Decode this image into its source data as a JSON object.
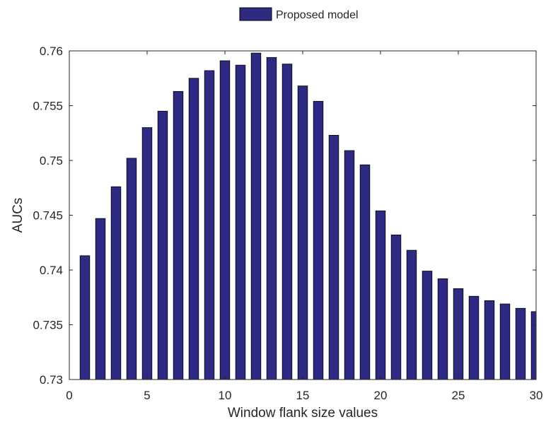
{
  "chart_data": {
    "type": "bar",
    "title": "",
    "xlabel": "Window flank size values",
    "ylabel": "AUCs",
    "xlim": [
      0,
      30
    ],
    "ylim": [
      0.73,
      0.76
    ],
    "xticks": [
      0,
      5,
      10,
      15,
      20,
      25,
      30
    ],
    "xtick_labels": [
      "0",
      "5",
      "10",
      "15",
      "20",
      "25",
      "30"
    ],
    "yticks": [
      0.73,
      0.735,
      0.74,
      0.745,
      0.75,
      0.755,
      0.76
    ],
    "ytick_labels": [
      "0.73",
      "0.735",
      "0.74",
      "0.745",
      "0.75",
      "0.755",
      "0.76"
    ],
    "grid": false,
    "legend_position": "top-center",
    "x": [
      1,
      2,
      3,
      4,
      5,
      6,
      7,
      8,
      9,
      10,
      11,
      12,
      13,
      14,
      15,
      16,
      17,
      18,
      19,
      20,
      21,
      22,
      23,
      24,
      25,
      26,
      27,
      28,
      29,
      30
    ],
    "series": [
      {
        "name": "Proposed model",
        "color": "#2e2a82",
        "edge_color": "#000000",
        "values": [
          0.7413,
          0.7447,
          0.7476,
          0.7502,
          0.753,
          0.7545,
          0.7563,
          0.7575,
          0.7582,
          0.7591,
          0.7587,
          0.7598,
          0.7594,
          0.7588,
          0.7568,
          0.7554,
          0.7523,
          0.7509,
          0.7496,
          0.7454,
          0.7432,
          0.7418,
          0.7399,
          0.7392,
          0.7383,
          0.7376,
          0.7372,
          0.7369,
          0.7365,
          0.7362
        ]
      }
    ]
  }
}
